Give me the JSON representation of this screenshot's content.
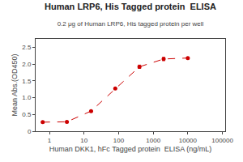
{
  "chart_data": {
    "type": "line",
    "title": "Human LRP6, His Tagged protein  ELISA",
    "subtitle": "0.2 μg of Human LRP6, His tagged protein per well",
    "xlabel": "Human DKK1, hFc Tagged protein  ELISA (ng/mL)",
    "ylabel": "Mean Abs.(OD450)",
    "x": [
      0.64,
      3.2,
      16,
      80,
      400,
      2000,
      10000
    ],
    "values": [
      0.27,
      0.28,
      0.6,
      1.27,
      1.92,
      2.15,
      2.18
    ],
    "error": [
      0.0,
      0.0,
      0.0,
      0.0,
      0.05,
      0.05,
      0.02
    ],
    "color": "#cc0000",
    "marker": "circle",
    "line_style": "dashed",
    "log": "x",
    "grid": false,
    "xlim": [
      0.4,
      120000
    ],
    "ylim": [
      0.0,
      2.75
    ],
    "xticks": [
      1,
      10,
      100,
      1000,
      10000,
      100000
    ],
    "yticks": [
      0,
      0.5,
      {
        "value": 1.0,
        "label": "1.0"
      },
      1.5,
      {
        "value": 2.0,
        "label": "2.0"
      },
      2.5
    ]
  }
}
